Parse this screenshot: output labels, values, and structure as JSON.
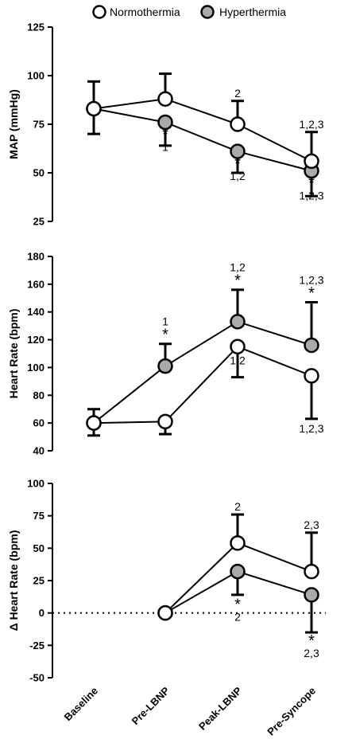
{
  "legend": [
    {
      "label": "Normothermia",
      "fill": "#ffffff"
    },
    {
      "label": "Hyperthermia",
      "fill": "#aaaaaa"
    }
  ],
  "categories": [
    "Baseline",
    "Pre-LBNP",
    "Peak-LBNP",
    "Pre-Syncope"
  ],
  "chart_data": [
    {
      "type": "line",
      "ylabel": "MAP (mmHg)",
      "ylim": [
        25,
        125
      ],
      "yticks": [
        25,
        50,
        75,
        100,
        125
      ],
      "zero_line": false,
      "series": [
        {
          "name": "Normothermia",
          "fill": "#ffffff",
          "values": [
            83,
            88,
            75,
            56
          ],
          "err_up": [
            14,
            13,
            12,
            15
          ],
          "err_down": [
            0,
            0,
            0,
            0
          ]
        },
        {
          "name": "Hyperthermia",
          "fill": "#aaaaaa",
          "values": [
            83,
            76,
            61,
            51
          ],
          "err_up": [
            0,
            0,
            0,
            0
          ],
          "err_down": [
            13,
            12,
            11,
            13
          ]
        }
      ],
      "annotations": [
        {
          "cat": 1,
          "y": 72,
          "above": false,
          "star": true,
          "text": "1"
        },
        {
          "cat": 2,
          "y": 57,
          "above": false,
          "star": true,
          "text": "1,2"
        },
        {
          "cat": 3,
          "y": 47,
          "above": false,
          "star": true,
          "text": "1,2,3"
        },
        {
          "cat": 2,
          "y": 89,
          "above": true,
          "star": false,
          "text": "2"
        },
        {
          "cat": 3,
          "y": 73,
          "above": true,
          "star": false,
          "text": "1,2,3"
        }
      ]
    },
    {
      "type": "line",
      "ylabel": "Heart Rate (bpm)",
      "ylim": [
        40,
        180
      ],
      "yticks": [
        40,
        60,
        80,
        100,
        120,
        140,
        160,
        180
      ],
      "zero_line": false,
      "series": [
        {
          "name": "Normothermia",
          "fill": "#ffffff",
          "values": [
            60,
            61,
            115,
            94
          ],
          "err_up": [
            0,
            0,
            0,
            0
          ],
          "err_down": [
            9,
            9,
            22,
            31
          ]
        },
        {
          "name": "Hyperthermia",
          "fill": "#aaaaaa",
          "values": [
            60,
            101,
            133,
            116
          ],
          "err_up": [
            10,
            16,
            23,
            31
          ],
          "err_down": [
            0,
            0,
            0,
            0
          ]
        }
      ],
      "annotations": [
        {
          "cat": 1,
          "y": 120,
          "above": true,
          "star": true,
          "text": "1"
        },
        {
          "cat": 2,
          "y": 159,
          "above": true,
          "star": true,
          "text": "1,2"
        },
        {
          "cat": 3,
          "y": 150,
          "above": true,
          "star": true,
          "text": "1,2,3"
        },
        {
          "cat": 2,
          "y": 109,
          "above": false,
          "star": false,
          "text": "1,2"
        },
        {
          "cat": 3,
          "y": 60,
          "above": false,
          "star": false,
          "text": "1,2,3"
        }
      ]
    },
    {
      "type": "line",
      "ylabel": "Δ Heart Rate (bpm)",
      "ylim": [
        -50,
        100
      ],
      "yticks": [
        -50,
        -25,
        0,
        25,
        50,
        75,
        100
      ],
      "zero_line": true,
      "series": [
        {
          "name": "Normothermia",
          "fill": "#ffffff",
          "cats": [
            1,
            2,
            3
          ],
          "values": [
            0,
            54,
            32
          ],
          "err_up": [
            0,
            22,
            30
          ],
          "err_down": [
            0,
            0,
            0
          ]
        },
        {
          "name": "Hyperthermia",
          "fill": "#aaaaaa",
          "cats": [
            1,
            2,
            3
          ],
          "values": [
            0,
            32,
            14
          ],
          "err_up": [
            0,
            0,
            0
          ],
          "err_down": [
            0,
            18,
            29
          ]
        }
      ],
      "annotations": [
        {
          "cat": 2,
          "y": 79,
          "above": true,
          "star": false,
          "text": "2"
        },
        {
          "cat": 3,
          "y": 65,
          "above": true,
          "star": false,
          "text": "2,3"
        },
        {
          "cat": 2,
          "y": 10,
          "above": false,
          "star": true,
          "text": "2"
        },
        {
          "cat": 3,
          "y": -18,
          "above": false,
          "star": true,
          "text": "2,3"
        }
      ]
    }
  ]
}
